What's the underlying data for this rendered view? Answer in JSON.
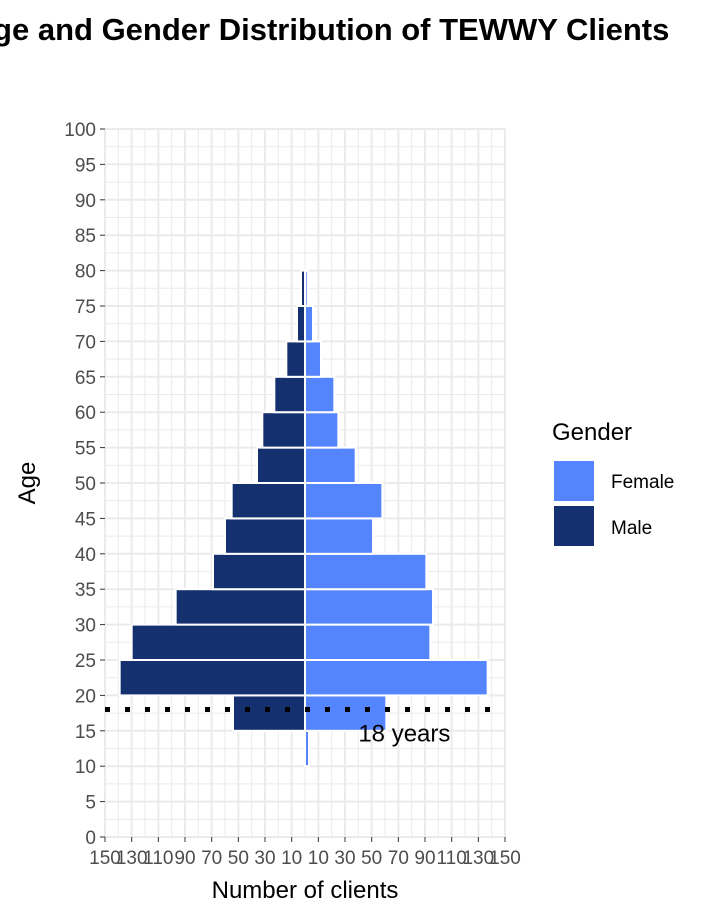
{
  "chart_data": {
    "type": "bar",
    "orientation": "horizontal-population-pyramid",
    "title": "Age and Gender Distribution of TEWWY Clients",
    "xlabel": "Number of clients",
    "ylabel": "Age",
    "age_bins": [
      10,
      15,
      20,
      25,
      30,
      35,
      40,
      45,
      50,
      55,
      60,
      65,
      70,
      75
    ],
    "series": [
      {
        "name": "Male",
        "color": "#14306E",
        "values": [
          0,
          54,
          139,
          130,
          97,
          69,
          60,
          55,
          36,
          32,
          23,
          14,
          6,
          3
        ]
      },
      {
        "name": "Female",
        "color": "#5584FF",
        "values": [
          3,
          61,
          137,
          94,
          96,
          91,
          51,
          58,
          38,
          25,
          22,
          12,
          6,
          2
        ]
      }
    ],
    "xlim": [
      -150,
      150
    ],
    "xticks": [
      "150",
      "130",
      "110",
      "90",
      "70",
      "50",
      "30",
      "10",
      "10",
      "30",
      "50",
      "70",
      "90",
      "110",
      "130",
      "150"
    ],
    "xtick_values": [
      -150,
      -130,
      -110,
      -90,
      -70,
      -50,
      -30,
      -10,
      10,
      30,
      50,
      70,
      90,
      110,
      130,
      150
    ],
    "ylim": [
      0,
      100
    ],
    "yticks": [
      "0",
      "5",
      "10",
      "15",
      "20",
      "25",
      "30",
      "35",
      "40",
      "45",
      "50",
      "55",
      "60",
      "65",
      "70",
      "75",
      "80",
      "85",
      "90",
      "95",
      "100"
    ],
    "reference_line": {
      "age": 18,
      "style": "dotted",
      "label": "18 years"
    },
    "legend": {
      "title": "Gender",
      "placement": "right",
      "entries": [
        {
          "label": "Female",
          "color": "#5584FF"
        },
        {
          "label": "Male",
          "color": "#14306E"
        }
      ]
    },
    "grid": true
  }
}
